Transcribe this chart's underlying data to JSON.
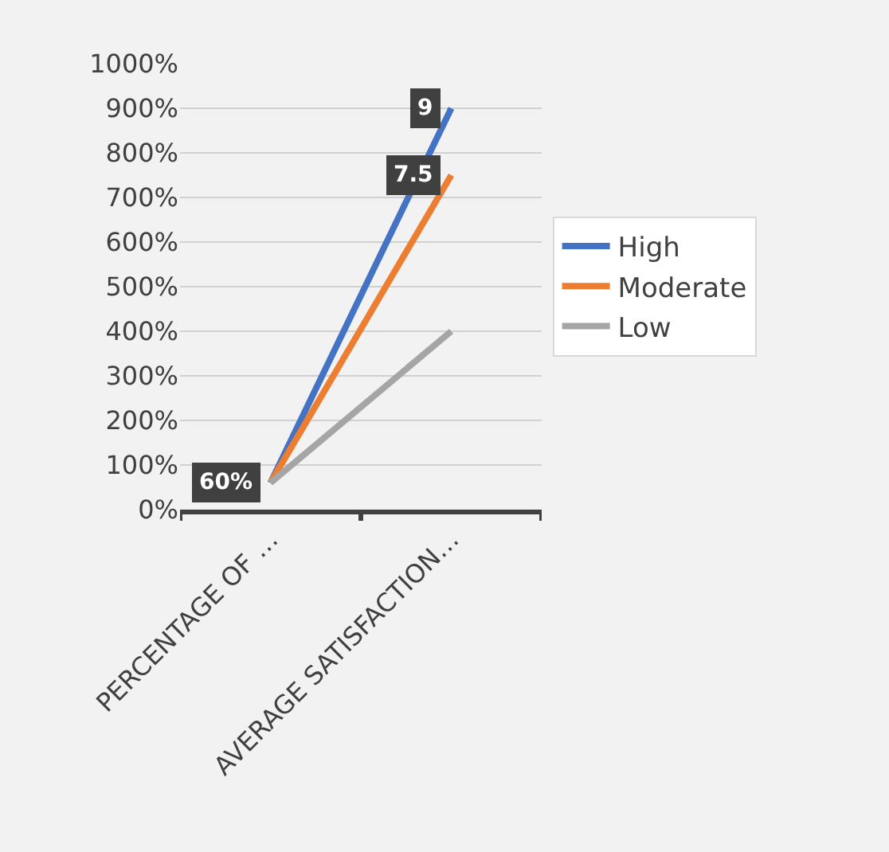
{
  "chart_data": {
    "type": "line",
    "categories": [
      "PERCENTAGE OF …",
      "AVERAGE SATISFACTION…"
    ],
    "series": [
      {
        "name": "High",
        "color": "#4472c4",
        "values": [
          0.6,
          9
        ],
        "value_labels": [
          "60%",
          "9"
        ]
      },
      {
        "name": "Moderate",
        "color": "#ed7d31",
        "values": [
          0.6,
          7.5
        ],
        "value_labels": [
          null,
          "7.5"
        ]
      },
      {
        "name": "Low",
        "color": "#a5a5a5",
        "values": [
          0.6,
          4
        ]
      }
    ],
    "ylim": [
      0,
      10
    ],
    "yticks": [
      {
        "value": 0,
        "label": "0%"
      },
      {
        "value": 1,
        "label": "100%"
      },
      {
        "value": 2,
        "label": "200%"
      },
      {
        "value": 3,
        "label": "300%"
      },
      {
        "value": 4,
        "label": "400%"
      },
      {
        "value": 5,
        "label": "500%"
      },
      {
        "value": 6,
        "label": "600%"
      },
      {
        "value": 7,
        "label": "700%"
      },
      {
        "value": 8,
        "label": "800%"
      },
      {
        "value": 9,
        "label": "900%"
      },
      {
        "value": 10,
        "label": "1000%"
      }
    ],
    "grid": "y",
    "legend": "right",
    "line_style": "solid"
  }
}
